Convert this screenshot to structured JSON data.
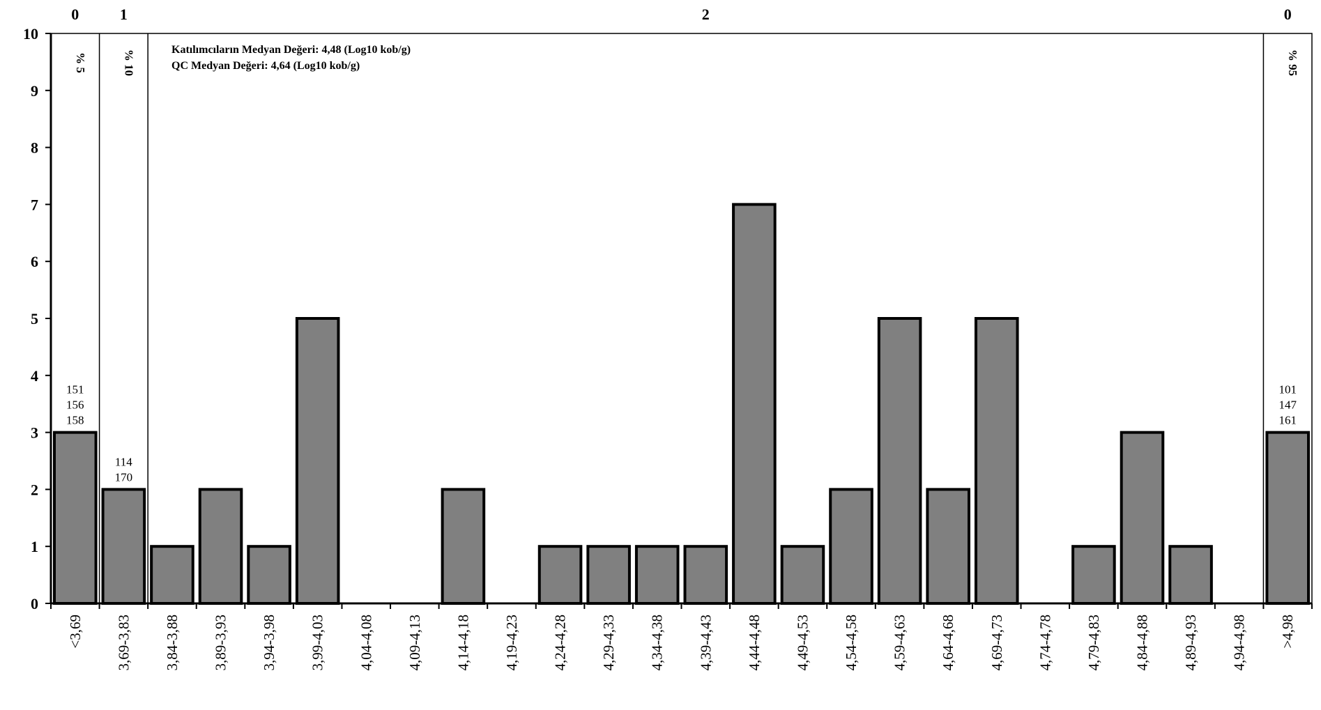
{
  "chart_data": {
    "type": "bar",
    "title": "",
    "xlabel": "",
    "ylabel": "",
    "ylim": [
      0,
      10
    ],
    "yticks": [
      "0",
      "1",
      "2",
      "3",
      "4",
      "5",
      "6",
      "7",
      "8",
      "9",
      "10"
    ],
    "grid": false,
    "categories": [
      "<3,69",
      "3,69-3,83",
      "3,84-3,88",
      "3,89-3,93",
      "3,94-3,98",
      "3,99-4,03",
      "4,04-4,08",
      "4,09-4,13",
      "4,14-4,18",
      "4,19-4,23",
      "4,24-4,28",
      "4,29-4,33",
      "4,34-4,38",
      "4,39-4,43",
      "4,44-4,48",
      "4,49-4,53",
      "4,54-4,58",
      "4,59-4,63",
      "4,64-4,68",
      "4,69-4,73",
      "4,74-4,78",
      "4,79-4,83",
      "4,84-4,88",
      "4,89-4,93",
      "4,94-4,98",
      ">4,98"
    ],
    "values": [
      3,
      2,
      1,
      2,
      1,
      5,
      0,
      0,
      2,
      0,
      1,
      1,
      1,
      1,
      7,
      1,
      2,
      5,
      2,
      5,
      0,
      1,
      3,
      1,
      0,
      3
    ],
    "bar_color": "#808080",
    "zones": [
      {
        "label": "0",
        "from": 0,
        "to": 0,
        "percentile": "% 5"
      },
      {
        "label": "1",
        "from": 1,
        "to": 1,
        "percentile": "% 10"
      },
      {
        "label": "2",
        "from": 2,
        "to": 24,
        "percentile": ""
      },
      {
        "label": "0",
        "from": 25,
        "to": 25,
        "percentile": "% 95"
      }
    ],
    "bar_annotations": [
      {
        "bar": 0,
        "lines": [
          "151",
          "156",
          "158"
        ]
      },
      {
        "bar": 1,
        "lines": [
          "114",
          "170"
        ]
      },
      {
        "bar": 25,
        "lines": [
          "101",
          "147",
          "161"
        ]
      }
    ],
    "info_lines": [
      "Katılımcıların Medyan Değeri: 4,48 (Log10 kob/g)",
      "QC Medyan Değeri: 4,64  (Log10 kob/g)"
    ]
  }
}
